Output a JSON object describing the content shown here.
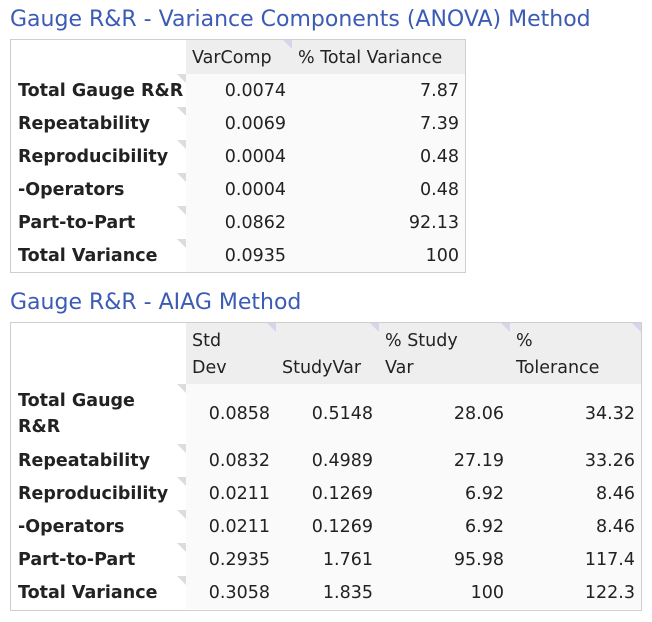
{
  "anova": {
    "title": "Gauge R&R - Variance Components (ANOVA) Method",
    "headers": [
      "",
      "VarComp",
      "% Total Variance"
    ],
    "rows": [
      {
        "label": "Total Gauge R&R",
        "varcomp": "0.0074",
        "pct": "7.87"
      },
      {
        "label": "Repeatability",
        "varcomp": "0.0069",
        "pct": "7.39"
      },
      {
        "label": "Reproducibility",
        "varcomp": "0.0004",
        "pct": "0.48"
      },
      {
        "label": "-Operators",
        "varcomp": "0.0004",
        "pct": "0.48"
      },
      {
        "label": "Part-to-Part",
        "varcomp": "0.0862",
        "pct": "92.13"
      },
      {
        "label": "Total Variance",
        "varcomp": "0.0935",
        "pct": "100"
      }
    ]
  },
  "aiag": {
    "title": "Gauge R&R - AIAG Method",
    "headers": [
      "",
      "Std Dev",
      "StudyVar",
      "% Study Var",
      "% Tolerance"
    ],
    "rows": [
      {
        "label": "Total Gauge R&R",
        "std": "0.0858",
        "studyvar": "0.5148",
        "pct_study": "28.06",
        "pct_tol": "34.32"
      },
      {
        "label": "Repeatability",
        "std": "0.0832",
        "studyvar": "0.4989",
        "pct_study": "27.19",
        "pct_tol": "33.26"
      },
      {
        "label": "Reproducibility",
        "std": "0.0211",
        "studyvar": "0.1269",
        "pct_study": "6.92",
        "pct_tol": "8.46"
      },
      {
        "label": "-Operators",
        "std": "0.0211",
        "studyvar": "0.1269",
        "pct_study": "6.92",
        "pct_tol": "8.46"
      },
      {
        "label": "Part-to-Part",
        "std": "0.2935",
        "studyvar": "1.761",
        "pct_study": "95.98",
        "pct_tol": "117.4"
      },
      {
        "label": "Total Variance",
        "std": "0.3058",
        "studyvar": "1.835",
        "pct_study": "100",
        "pct_tol": "122.3"
      }
    ]
  },
  "colors": {
    "title": "#3b5bb5",
    "header_bg": "#eeeeee",
    "tab": "#d8d4ec"
  }
}
